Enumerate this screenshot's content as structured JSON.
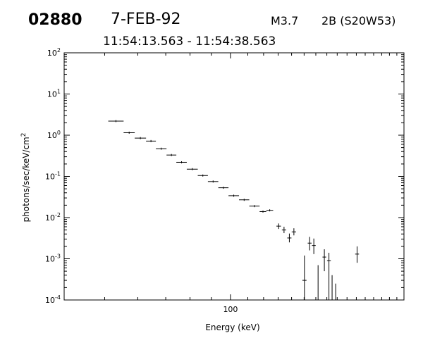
{
  "header": {
    "event_id": "02880",
    "date": "7-FEB-92",
    "goes_class": "M3.7",
    "flare_info": "2B (S20W53)",
    "time_range": "11:54:13.563 - 11:54:38.563"
  },
  "chart_data": {
    "type": "scatter",
    "title": "",
    "xlabel": "Energy (keV)",
    "ylabel": "photons/sec/keV/cm^2",
    "xscale": "log",
    "yscale": "log",
    "xlim": [
      40,
      260
    ],
    "ylim": [
      0.0001,
      100
    ],
    "x_tick_labels": [
      {
        "value": 100,
        "label": "100"
      }
    ],
    "y_tick_labels": [
      {
        "value": 100,
        "mantissa": "10",
        "exp": "2"
      },
      {
        "value": 10,
        "mantissa": "10",
        "exp": "1"
      },
      {
        "value": 1,
        "mantissa": "10",
        "exp": "0"
      },
      {
        "value": 0.1,
        "mantissa": "10",
        "exp": "-1"
      },
      {
        "value": 0.01,
        "mantissa": "10",
        "exp": "-2"
      },
      {
        "value": 0.001,
        "mantissa": "10",
        "exp": "-3"
      },
      {
        "value": 0.0001,
        "mantissa": "10",
        "exp": "-4"
      }
    ],
    "grid": false,
    "series": [
      {
        "points": [
          {
            "x_lo": 51.0,
            "x_hi": 55.5,
            "y": 2.2
          },
          {
            "x_lo": 55.5,
            "x_hi": 59.0,
            "y": 1.15
          },
          {
            "x_lo": 59.0,
            "x_hi": 62.8,
            "y": 0.85
          },
          {
            "x_lo": 62.8,
            "x_hi": 66.3,
            "y": 0.72
          },
          {
            "x_lo": 66.3,
            "x_hi": 70.3,
            "y": 0.47
          },
          {
            "x_lo": 70.3,
            "x_hi": 74.2,
            "y": 0.33
          },
          {
            "x_lo": 74.2,
            "x_hi": 78.6,
            "y": 0.22
          },
          {
            "x_lo": 78.6,
            "x_hi": 83.5,
            "y": 0.15
          },
          {
            "x_lo": 83.5,
            "x_hi": 88.3,
            "y": 0.105
          },
          {
            "x_lo": 88.3,
            "x_hi": 93.5,
            "y": 0.075
          },
          {
            "x_lo": 93.5,
            "x_hi": 98.9,
            "y": 0.053
          },
          {
            "x_lo": 98.9,
            "x_hi": 104.8,
            "y": 0.034
          },
          {
            "x_lo": 104.8,
            "x_hi": 110.9,
            "y": 0.027
          },
          {
            "x_lo": 110.9,
            "x_hi": 117.4,
            "y": 0.019
          },
          {
            "x_lo": 117.4,
            "x_hi": 121.8,
            "y": 0.014
          },
          {
            "x_lo": 121.8,
            "x_hi": 126.5,
            "y": 0.015
          },
          {
            "x_lo": 128.8,
            "x_hi": 132.0,
            "y": 0.0062,
            "y_lo": 0.0053,
            "y_hi": 0.0072
          },
          {
            "x_lo": 132.7,
            "x_hi": 135.9,
            "y": 0.005,
            "y_lo": 0.0042,
            "y_hi": 0.006
          },
          {
            "x_lo": 136.7,
            "x_hi": 139.9,
            "y": 0.0032,
            "y_lo": 0.0025,
            "y_hi": 0.0041
          },
          {
            "x_lo": 140.1,
            "x_hi": 143.5,
            "y": 0.0045,
            "y_lo": 0.0037,
            "y_hi": 0.0055
          },
          {
            "x_lo": 148.6,
            "x_hi": 152.0,
            "y": 0.0003,
            "y_lo": 0.0001,
            "y_hi": 0.0012
          },
          {
            "x_lo": 153.0,
            "x_hi": 156.3,
            "y": 0.0024,
            "y_lo": 0.0016,
            "y_hi": 0.0034
          },
          {
            "x_lo": 156.6,
            "x_hi": 159.9,
            "y": 0.0021,
            "y_lo": 0.0013,
            "y_hi": 0.0031
          },
          {
            "x_lo": 166.0,
            "x_hi": 169.4,
            "y": 0.0011,
            "y_lo": 0.0005,
            "y_hi": 0.0017
          },
          {
            "x_lo": 170.2,
            "x_hi": 173.8,
            "y": 0.0009,
            "y_lo": 0.0001,
            "y_hi": 0.0014
          },
          {
            "x_lo": 198.7,
            "x_hi": 203.0,
            "y": 0.0013,
            "y_lo": 0.0008,
            "y_hi": 0.002
          }
        ],
        "upper_limit_bars": [
          {
            "x": 162.0,
            "y_hi": 0.0007
          },
          {
            "x": 175.0,
            "y_hi": 0.0004
          },
          {
            "x": 178.5,
            "y_hi": 0.00025
          }
        ]
      }
    ]
  }
}
